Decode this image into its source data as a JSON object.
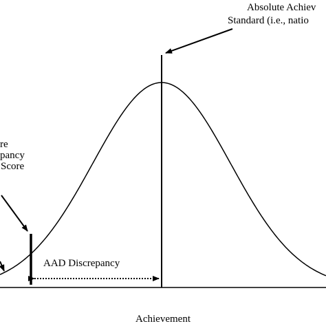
{
  "labels": {
    "standard_line1": "Absolute Achiev",
    "standard_line2": "Standard (i.e., natio",
    "score_line1": "re",
    "score_line2": "pancy",
    "score_line3": "Score",
    "discrepancy": "AAD Discrepancy",
    "x_axis": "Achievement"
  }
}
